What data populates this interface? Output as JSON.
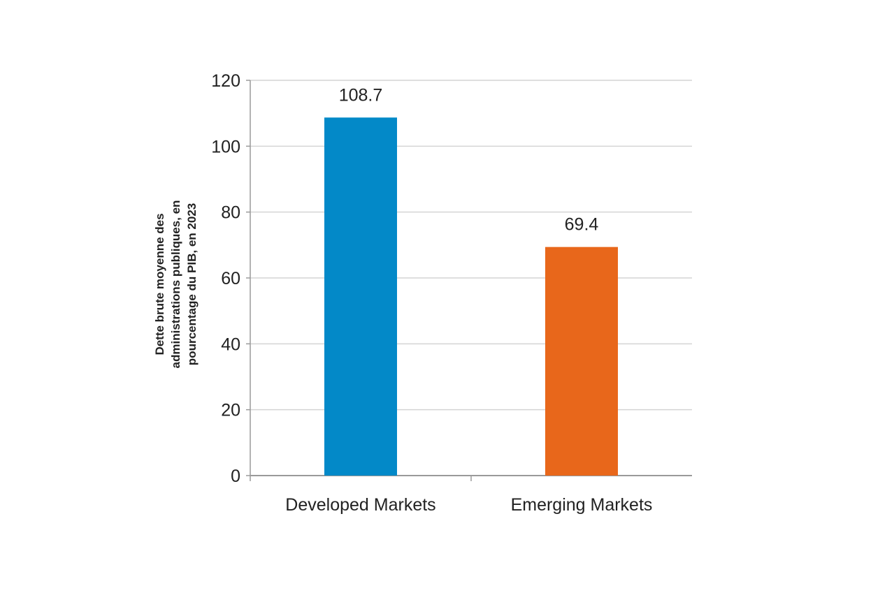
{
  "chart_data": {
    "type": "bar",
    "categories": [
      "Developed Markets",
      "Emerging Markets"
    ],
    "values": [
      108.7,
      69.4
    ],
    "data_labels": [
      "108.7",
      "69.4"
    ],
    "colors": [
      "#0389c8",
      "#e8671b"
    ],
    "ylabel_lines": [
      "Dette brute moyenne des",
      "administrations publiques, en",
      "pourcentage du PIB, en 2023"
    ],
    "xlabel": "",
    "ylim": [
      0,
      120
    ],
    "yticks": [
      0,
      20,
      40,
      60,
      80,
      100,
      120
    ],
    "grid": true,
    "legend": "none"
  }
}
